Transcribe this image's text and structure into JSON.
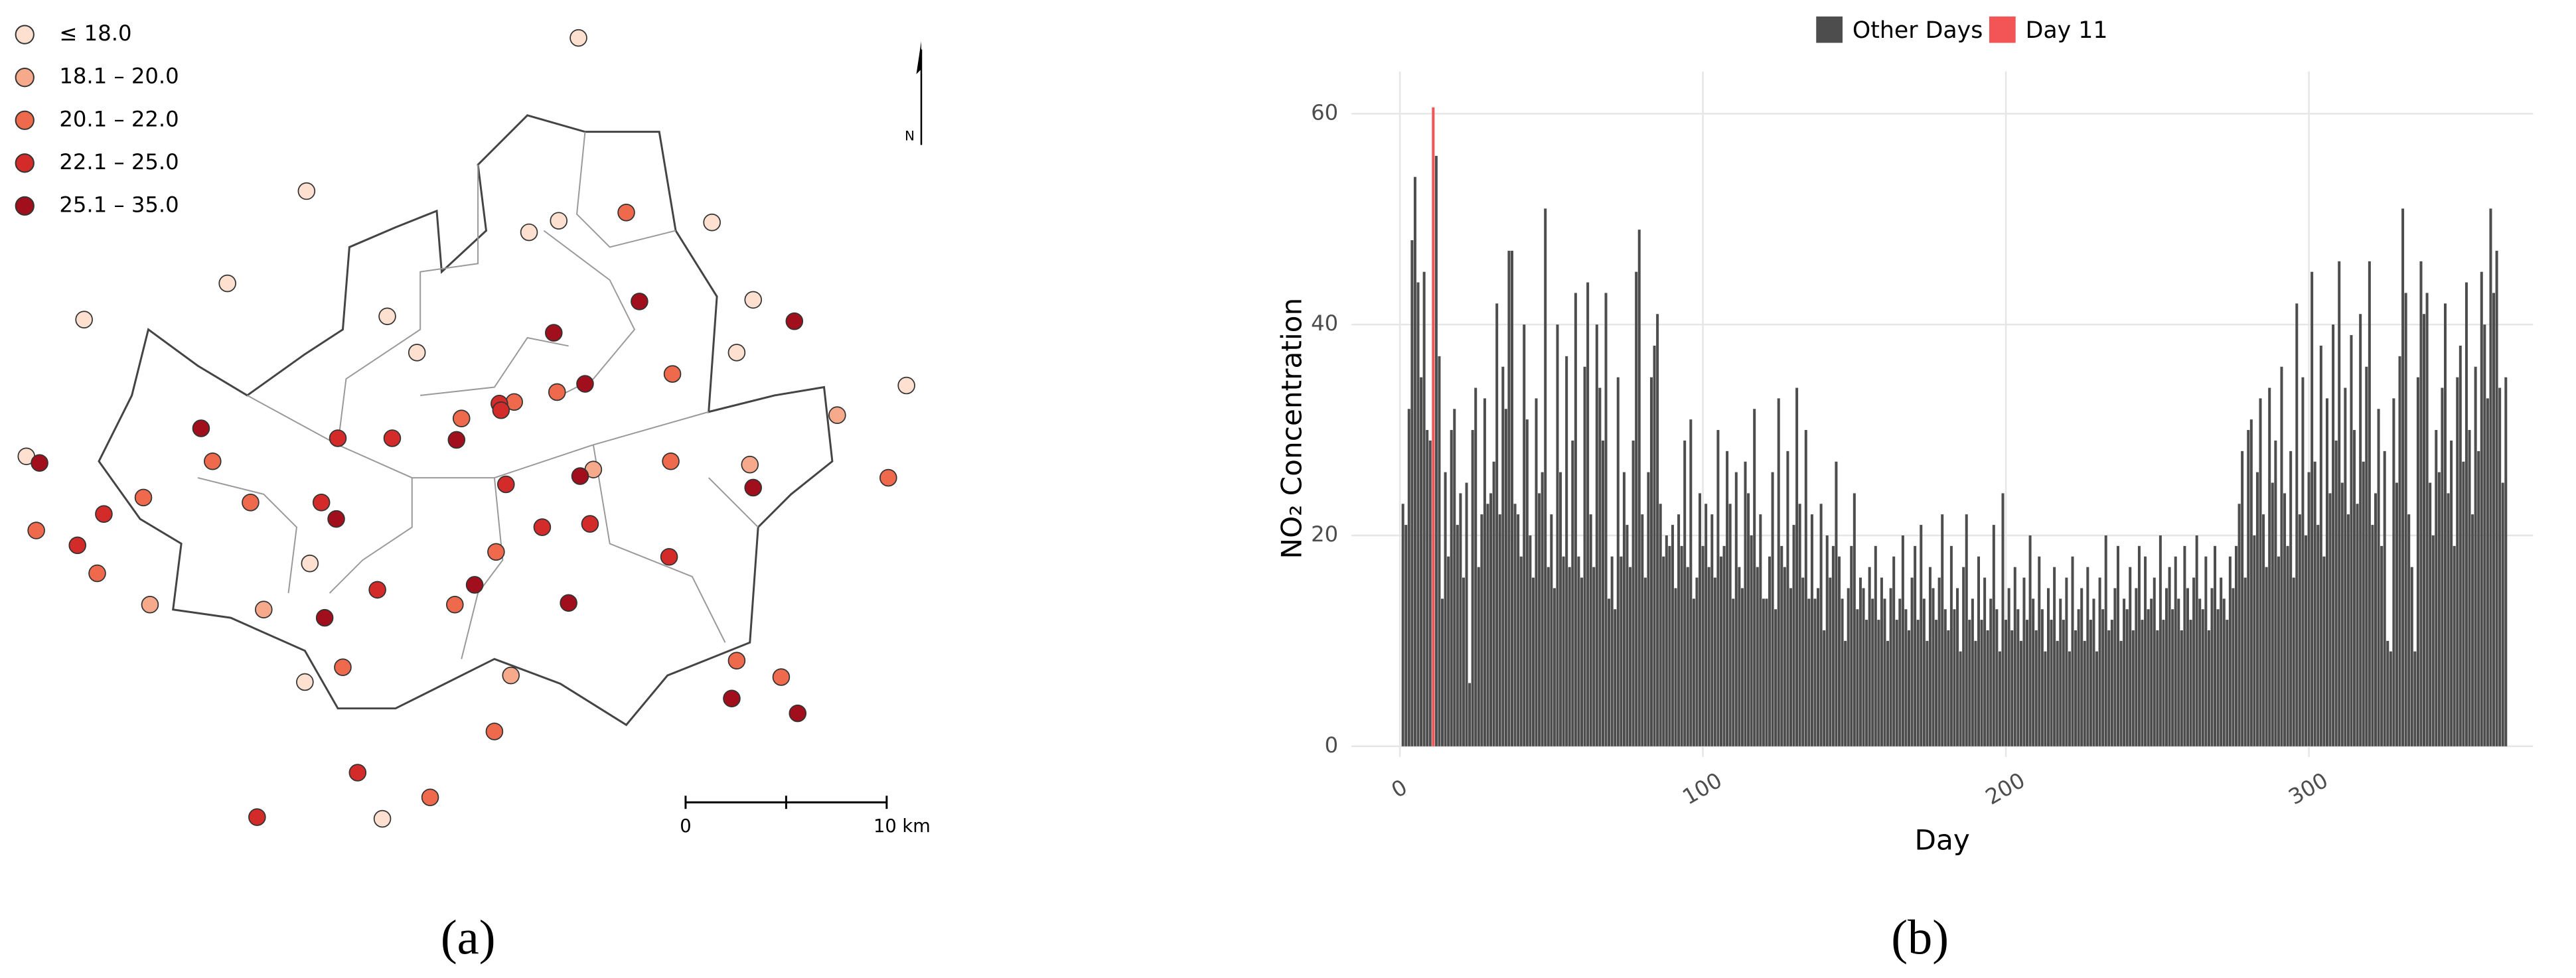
{
  "chart_data": [
    {
      "type": "map",
      "caption": "(a)",
      "legend": [
        {
          "label": "≤ 18.0",
          "color": "#fde0cf"
        },
        {
          "label": "18.1 – 20.0",
          "color": "#f7a98b"
        },
        {
          "label": "20.1 – 22.0",
          "color": "#ef6a4c"
        },
        {
          "label": "22.1 – 25.0",
          "color": "#d32a2a"
        },
        {
          "label": "25.1 – 35.0",
          "color": "#a00f1b"
        }
      ],
      "scale_labels": [
        "0",
        "10 km"
      ],
      "north": "N"
    },
    {
      "type": "bar",
      "caption": "(b)",
      "x_label": "Day",
      "y_label": "NO₂ Concentration",
      "xlim": [
        -16,
        374
      ],
      "ylim": [
        -1,
        64
      ],
      "xticks": [
        0,
        100,
        200,
        300
      ],
      "yticks": [
        0,
        20,
        40,
        60
      ],
      "grid": true,
      "series": [
        {
          "name": "Other Days",
          "color": "#4d4d4d",
          "x": [
            1,
            2,
            3,
            4,
            5,
            6,
            7,
            8,
            9,
            10,
            12,
            13,
            14,
            15,
            16,
            17,
            18,
            19,
            20,
            21,
            22,
            23,
            24,
            25,
            26,
            27,
            28,
            29,
            30,
            31,
            32,
            33,
            34,
            35,
            36,
            37,
            38,
            39,
            40,
            41,
            42,
            43,
            44,
            45,
            46,
            47,
            48,
            49,
            50,
            51,
            52,
            53,
            54,
            55,
            56,
            57,
            58,
            59,
            60,
            61,
            62,
            63,
            64,
            65,
            66,
            67,
            68,
            69,
            70,
            71,
            72,
            73,
            74,
            75,
            76,
            77,
            78,
            79,
            80,
            81,
            82,
            83,
            84,
            85,
            86,
            87,
            88,
            89,
            90,
            91,
            92,
            93,
            94,
            95,
            96,
            97,
            98,
            99,
            100,
            101,
            102,
            103,
            104,
            105,
            106,
            107,
            108,
            109,
            110,
            111,
            112,
            113,
            114,
            115,
            116,
            117,
            118,
            119,
            120,
            121,
            122,
            123,
            124,
            125,
            126,
            127,
            128,
            129,
            130,
            131,
            132,
            133,
            134,
            135,
            136,
            137,
            138,
            139,
            140,
            141,
            142,
            143,
            144,
            145,
            146,
            147,
            148,
            149,
            150,
            151,
            152,
            153,
            154,
            155,
            156,
            157,
            158,
            159,
            160,
            161,
            162,
            163,
            164,
            165,
            166,
            167,
            168,
            169,
            170,
            171,
            172,
            173,
            174,
            175,
            176,
            177,
            178,
            179,
            180,
            181,
            182,
            183,
            184,
            185,
            186,
            187,
            188,
            189,
            190,
            191,
            192,
            193,
            194,
            195,
            196,
            197,
            198,
            199,
            200,
            201,
            202,
            203,
            204,
            205,
            206,
            207,
            208,
            209,
            210,
            211,
            212,
            213,
            214,
            215,
            216,
            217,
            218,
            219,
            220,
            221,
            222,
            223,
            224,
            225,
            226,
            227,
            228,
            229,
            230,
            231,
            232,
            233,
            234,
            235,
            236,
            237,
            238,
            239,
            240,
            241,
            242,
            243,
            244,
            245,
            246,
            247,
            248,
            249,
            250,
            251,
            252,
            253,
            254,
            255,
            256,
            257,
            258,
            259,
            260,
            261,
            262,
            263,
            264,
            265,
            266,
            267,
            268,
            269,
            270,
            271,
            272,
            273,
            274,
            275,
            276,
            277,
            278,
            279,
            280,
            281,
            282,
            283,
            284,
            285,
            286,
            287,
            288,
            289,
            290,
            291,
            292,
            293,
            294,
            295,
            296,
            297,
            298,
            299,
            300,
            301,
            302,
            303,
            304,
            305,
            306,
            307,
            308,
            309,
            310,
            311,
            312,
            313,
            314,
            315,
            316,
            317,
            318,
            319,
            320,
            321,
            322,
            323,
            324,
            325,
            326,
            327,
            328,
            329,
            330,
            331,
            332,
            333,
            334,
            335,
            336,
            337,
            338,
            339,
            340,
            341,
            342,
            343,
            344,
            345,
            346,
            347,
            348,
            349,
            350,
            351,
            352,
            353,
            354,
            355,
            356,
            357,
            358,
            359,
            360,
            361,
            362,
            363,
            364,
            365
          ],
          "values": [
            23,
            21,
            32,
            48,
            54,
            44,
            35,
            45,
            30,
            29,
            56,
            37,
            14,
            26,
            18,
            30,
            32,
            21,
            24,
            16,
            25,
            6,
            30,
            34,
            17,
            22,
            33,
            23,
            24,
            27,
            42,
            22,
            36,
            32,
            47,
            47,
            23,
            22,
            18,
            40,
            31,
            20,
            16,
            33,
            24,
            26,
            51,
            17,
            22,
            15,
            40,
            26,
            18,
            37,
            17,
            29,
            43,
            18,
            16,
            36,
            44,
            22,
            17,
            40,
            34,
            29,
            43,
            14,
            18,
            13,
            35,
            18,
            26,
            21,
            17,
            29,
            45,
            49,
            22,
            16,
            26,
            35,
            38,
            41,
            23,
            18,
            20,
            19,
            21,
            15,
            22,
            19,
            29,
            17,
            31,
            14,
            16,
            24,
            19,
            23,
            17,
            22,
            16,
            30,
            18,
            19,
            28,
            23,
            14,
            26,
            17,
            15,
            27,
            24,
            20,
            32,
            17,
            22,
            14,
            14,
            18,
            26,
            13,
            33,
            19,
            17,
            28,
            15,
            21,
            34,
            23,
            16,
            30,
            14,
            22,
            14,
            15,
            23,
            11,
            20,
            16,
            19,
            27,
            18,
            14,
            10,
            15,
            19,
            24,
            13,
            16,
            15,
            12,
            17,
            14,
            19,
            12,
            16,
            14,
            10,
            15,
            18,
            12,
            14,
            20,
            13,
            11,
            16,
            19,
            12,
            21,
            14,
            10,
            17,
            15,
            12,
            16,
            22,
            13,
            11,
            19,
            13,
            15,
            9,
            17,
            22,
            12,
            14,
            10,
            18,
            12,
            16,
            11,
            14,
            21,
            13,
            9,
            24,
            12,
            15,
            11,
            17,
            13,
            10,
            16,
            12,
            20,
            14,
            11,
            18,
            13,
            9,
            15,
            12,
            17,
            10,
            14,
            12,
            16,
            9,
            18,
            11,
            13,
            15,
            10,
            17,
            12,
            14,
            9,
            16,
            13,
            20,
            11,
            12,
            15,
            19,
            10,
            14,
            13,
            17,
            11,
            15,
            19,
            12,
            18,
            13,
            14,
            16,
            11,
            20,
            12,
            15,
            17,
            13,
            18,
            14,
            11,
            19,
            15,
            12,
            16,
            20,
            14,
            13,
            18,
            11,
            15,
            19,
            13,
            16,
            14,
            12,
            18,
            15,
            19,
            23,
            28,
            16,
            30,
            31,
            20,
            26,
            33,
            22,
            17,
            34,
            25,
            29,
            18,
            36,
            24,
            19,
            28,
            16,
            42,
            22,
            35,
            20,
            26,
            45,
            27,
            21,
            38,
            18,
            33,
            24,
            40,
            29,
            46,
            25,
            34,
            22,
            39,
            30,
            23,
            41,
            27,
            36,
            46,
            21,
            24,
            32,
            19,
            28,
            10,
            9,
            33,
            25,
            37,
            51,
            43,
            22,
            17,
            9,
            35,
            46,
            41,
            43,
            25,
            20,
            30,
            26,
            34,
            42,
            24,
            29,
            19,
            35,
            38,
            27,
            44,
            30,
            22,
            36,
            28,
            45,
            40,
            33,
            51,
            43,
            47,
            34,
            25,
            35
          ]
        },
        {
          "name": "Day 11",
          "color": "#f35556",
          "x": [
            11
          ],
          "values": [
            60.6
          ]
        }
      ]
    }
  ]
}
